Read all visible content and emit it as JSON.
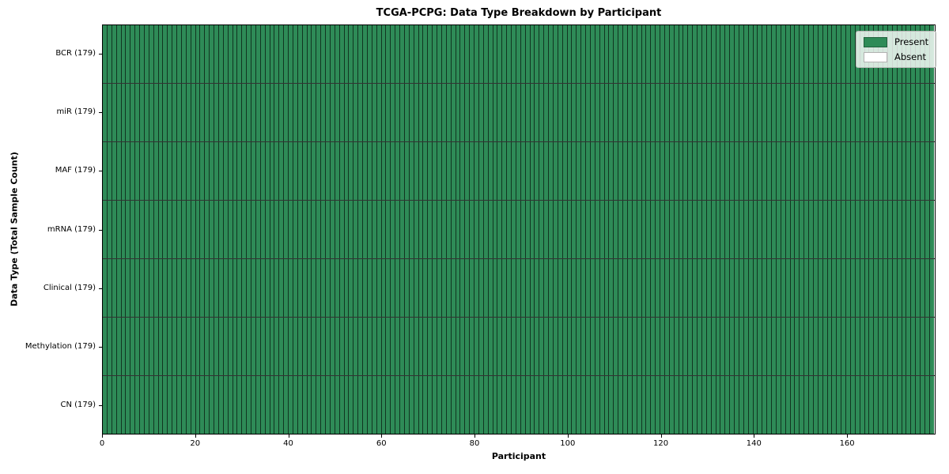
{
  "chart_data": {
    "type": "heatmap",
    "title": "TCGA-PCPG: Data Type Breakdown by Participant",
    "xlabel": "Participant",
    "ylabel": "Data Type (Total Sample Count)",
    "n_participants": 179,
    "xlim": [
      0,
      179
    ],
    "x_ticks": [
      0,
      20,
      40,
      60,
      80,
      100,
      120,
      140,
      160
    ],
    "grid": false,
    "rows": [
      {
        "label": "BCR (179)",
        "data_type": "BCR",
        "total_samples": 179,
        "present": 179,
        "absent": 0
      },
      {
        "label": "miR (179)",
        "data_type": "miR",
        "total_samples": 179,
        "present": 179,
        "absent": 0
      },
      {
        "label": "MAF (179)",
        "data_type": "MAF",
        "total_samples": 179,
        "present": 179,
        "absent": 0
      },
      {
        "label": "mRNA (179)",
        "data_type": "mRNA",
        "total_samples": 179,
        "present": 179,
        "absent": 0
      },
      {
        "label": "Clinical (179)",
        "data_type": "Clinical",
        "total_samples": 179,
        "present": 179,
        "absent": 0
      },
      {
        "label": "Methylation (179)",
        "data_type": "Methylation",
        "total_samples": 179,
        "present": 179,
        "absent": 0
      },
      {
        "label": "CN (179)",
        "data_type": "CN",
        "total_samples": 179,
        "present": 179,
        "absent": 0
      }
    ],
    "legend": {
      "position": "upper-right",
      "entries": [
        {
          "label": "Present",
          "color": "#2e8b57"
        },
        {
          "label": "Absent",
          "color": "#ffffff"
        }
      ]
    },
    "colors": {
      "present": "#2e8b57",
      "absent": "#ffffff",
      "cell_edge": "#1c291f",
      "spine": "#000000"
    }
  }
}
